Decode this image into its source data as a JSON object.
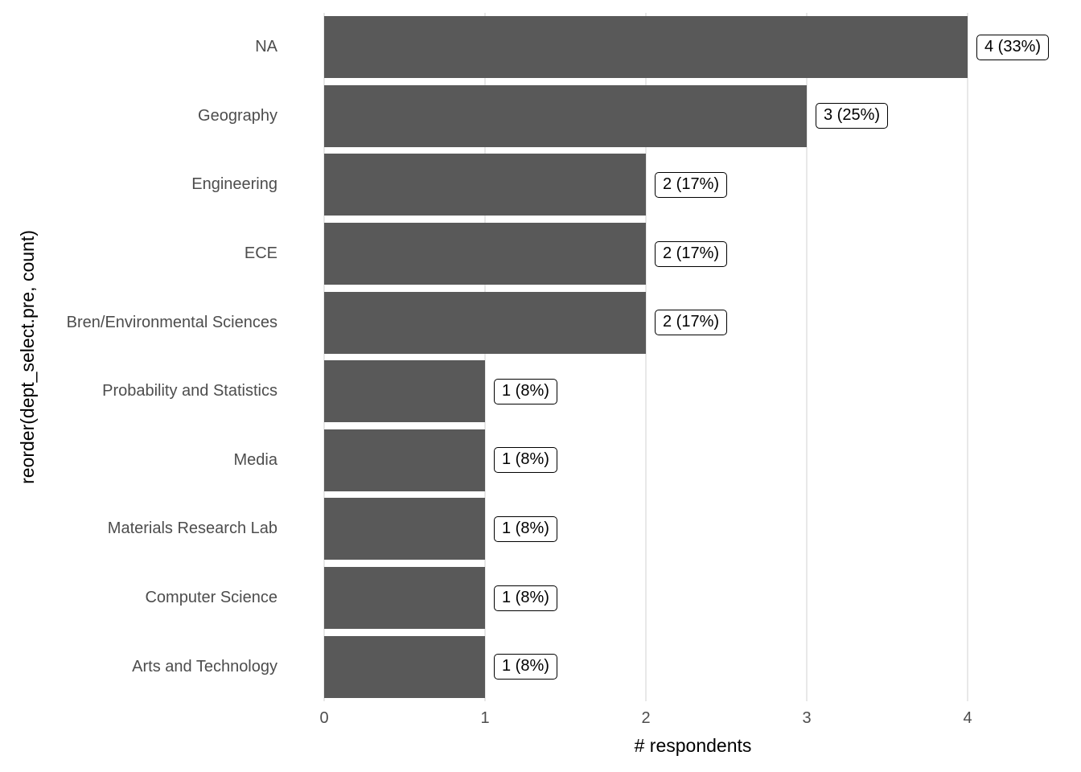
{
  "chart_data": {
    "type": "bar",
    "orientation": "horizontal",
    "xlabel": "# respondents",
    "ylabel": "reorder(dept_select.pre, count)",
    "categories": [
      "NA",
      "Geography",
      "Engineering",
      "ECE",
      "Bren/Environmental Sciences",
      "Probability and Statistics",
      "Media",
      "Materials Research Lab",
      "Computer Science",
      "Arts and Technology"
    ],
    "values": [
      4,
      3,
      2,
      2,
      2,
      1,
      1,
      1,
      1,
      1
    ],
    "bar_labels": [
      "4 (33%)",
      "3 (25%)",
      "2 (17%)",
      "2 (17%)",
      "2 (17%)",
      "1 (8%)",
      "1 (8%)",
      "1 (8%)",
      "1 (8%)",
      "1 (8%)"
    ],
    "xticks": [
      0,
      1,
      2,
      3,
      4
    ],
    "xlim": [
      0,
      4.585
    ],
    "grid": "vertical major gridlines only",
    "legend_position": "none",
    "colors": {
      "bar_fill": "#595959",
      "gridline": "#e8e8e8",
      "axis_text": "#4d4d4d",
      "axis_title": "#000000",
      "label_box_fill": "#ffffff",
      "label_box_border": "#000000",
      "label_box_text": "#000000",
      "background": "#ffffff"
    }
  }
}
